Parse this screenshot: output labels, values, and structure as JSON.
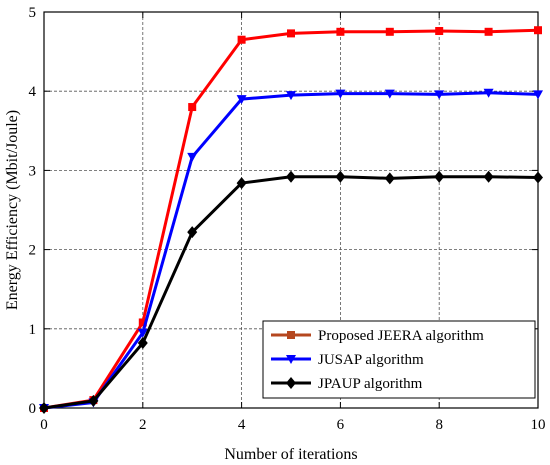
{
  "chart_data": {
    "type": "line",
    "xlabel": "Number of iterations",
    "ylabel": "Energy Efficiency (Mbit/Joule)",
    "xlim": [
      0,
      10
    ],
    "ylim": [
      0,
      5
    ],
    "xticks": [
      0,
      2,
      4,
      6,
      8,
      10
    ],
    "yticks": [
      0,
      1,
      2,
      3,
      4,
      5
    ],
    "grid": true,
    "legend_position": "bottom-right",
    "x": [
      0,
      1,
      2,
      3,
      4,
      5,
      6,
      7,
      8,
      9,
      10
    ],
    "series": [
      {
        "name": "Proposed JEERA algorithm",
        "color": "#ff0000",
        "marker": "square",
        "legend_color": "#b5471f",
        "values": [
          0,
          0.1,
          1.08,
          3.8,
          4.65,
          4.73,
          4.75,
          4.75,
          4.76,
          4.75,
          4.77
        ]
      },
      {
        "name": "JUSAP algorithm",
        "color": "#0000ff",
        "marker": "triangle-down",
        "values": [
          0,
          0.07,
          0.95,
          3.17,
          3.9,
          3.95,
          3.97,
          3.97,
          3.96,
          3.98,
          3.96
        ]
      },
      {
        "name": "JPAUP algorithm",
        "color": "#000000",
        "marker": "diamond",
        "values": [
          0,
          0.09,
          0.82,
          2.22,
          2.84,
          2.92,
          2.92,
          2.9,
          2.92,
          2.92,
          2.91
        ]
      }
    ]
  }
}
